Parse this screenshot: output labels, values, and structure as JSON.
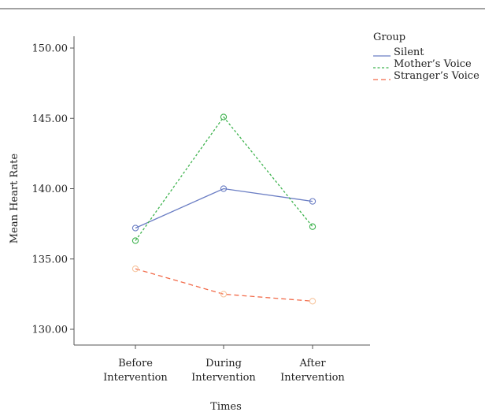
{
  "chart_data": {
    "type": "line",
    "title": "",
    "xlabel": "Times",
    "ylabel": "Mean Heart Rate",
    "categories": [
      [
        "Before",
        "Intervention"
      ],
      [
        "During",
        "Intervention"
      ],
      [
        "After",
        "Intervention"
      ]
    ],
    "ylim": [
      129,
      151
    ],
    "yticks": [
      130,
      135,
      140,
      145,
      150
    ],
    "ytick_labels": [
      "130.00",
      "135.00",
      "140.00",
      "145.00",
      "150.00"
    ],
    "grid": false,
    "legend": {
      "title": "Group",
      "placement": "top-right"
    },
    "series": [
      {
        "name": "Silent",
        "values": [
          137.2,
          140.0,
          139.1
        ],
        "color": "#6b7ec4",
        "dash": "solid"
      },
      {
        "name": "Mother’s Voice",
        "values": [
          136.3,
          145.1,
          137.3
        ],
        "color": "#3fb34f",
        "dash": "dotted"
      },
      {
        "name": "Stranger’s Voice",
        "values": [
          134.3,
          132.5,
          132.0
        ],
        "color": "#f26b4a",
        "dash": "dashed",
        "marker_color": "#f7c6a0"
      }
    ]
  }
}
